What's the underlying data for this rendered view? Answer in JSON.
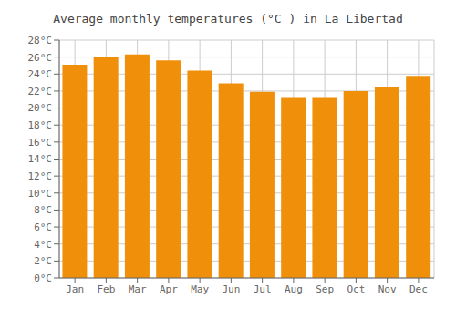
{
  "chart_data": {
    "type": "bar",
    "title": "Average monthly temperatures (°C ) in La Libertad",
    "categories": [
      "Jan",
      "Feb",
      "Mar",
      "Apr",
      "May",
      "Jun",
      "Jul",
      "Aug",
      "Sep",
      "Oct",
      "Nov",
      "Dec"
    ],
    "values": [
      25.1,
      26.0,
      26.3,
      25.6,
      24.4,
      22.9,
      21.9,
      21.3,
      21.3,
      22.0,
      22.5,
      23.8
    ],
    "color": "#F0900A",
    "ylim": [
      0,
      28
    ],
    "yticks": [
      {
        "value": 0,
        "label": "0°C"
      },
      {
        "value": 2,
        "label": "2°C"
      },
      {
        "value": 4,
        "label": "4°C"
      },
      {
        "value": 6,
        "label": "6°C"
      },
      {
        "value": 8,
        "label": "8°C"
      },
      {
        "value": 10,
        "label": "10°C"
      },
      {
        "value": 12,
        "label": "12°C"
      },
      {
        "value": 14,
        "label": "14°C"
      },
      {
        "value": 16,
        "label": "16°C"
      },
      {
        "value": 18,
        "label": "18°C"
      },
      {
        "value": 20,
        "label": "20°C"
      },
      {
        "value": 22,
        "label": "22°C"
      },
      {
        "value": 24,
        "label": "24°C"
      },
      {
        "value": 26,
        "label": "26°C"
      },
      {
        "value": 28,
        "label": "28°C"
      }
    ],
    "grid": true
  }
}
